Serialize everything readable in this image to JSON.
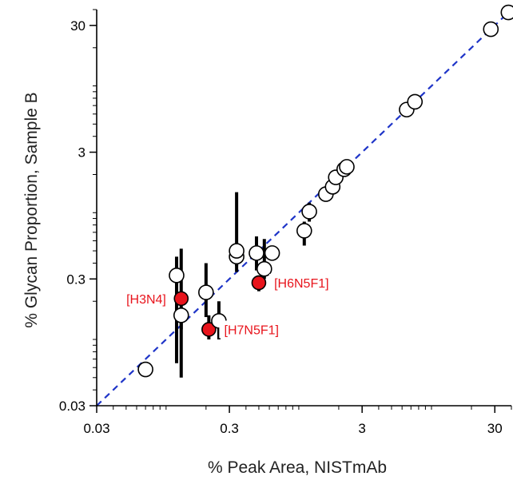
{
  "colors": {
    "axis": "#000000",
    "fit_line": "#1f35c8",
    "open_marker_fill": "#ffffff",
    "highlight_marker_fill": "#e8141c",
    "annotation_text": "#e8141c"
  },
  "chart_data": {
    "type": "scatter",
    "xlabel": "% Peak Area, NISTmAb",
    "ylabel": "% Glycan Proportion, Sample B",
    "x_scale": "log",
    "y_scale": "log",
    "xlim": [
      0.03,
      40
    ],
    "ylim": [
      0.03,
      40
    ],
    "x_ticks": [
      "0.03",
      "0.3",
      "3",
      "30"
    ],
    "y_ticks": [
      "0.03",
      "0.3",
      "3",
      "30"
    ],
    "grid": false,
    "legend": "none",
    "reference_line": {
      "style": "dashed",
      "x": [
        0.03,
        40
      ],
      "y": [
        0.03,
        40
      ]
    },
    "points": [
      {
        "x": 0.07,
        "y": 0.058,
        "err_low": 0.053,
        "err_high": 0.064,
        "highlight": false
      },
      {
        "x": 0.12,
        "y": 0.32,
        "err_low": 0.065,
        "err_high": 0.45,
        "highlight": false
      },
      {
        "x": 0.13,
        "y": 0.155,
        "err_low": 0.12,
        "err_high": 0.18,
        "highlight": false
      },
      {
        "x": 0.13,
        "y": 0.21,
        "err_low": 0.05,
        "err_high": 0.52,
        "highlight": true
      },
      {
        "x": 0.2,
        "y": 0.235,
        "err_low": 0.15,
        "err_high": 0.4,
        "highlight": false
      },
      {
        "x": 0.21,
        "y": 0.12,
        "err_low": 0.1,
        "err_high": 0.155,
        "highlight": true
      },
      {
        "x": 0.25,
        "y": 0.14,
        "err_low": 0.1,
        "err_high": 0.2,
        "highlight": false
      },
      {
        "x": 0.34,
        "y": 0.45,
        "err_low": 0.38,
        "err_high": 0.52,
        "highlight": false
      },
      {
        "x": 0.34,
        "y": 0.5,
        "err_low": 0.34,
        "err_high": 1.45,
        "highlight": false
      },
      {
        "x": 0.48,
        "y": 0.48,
        "err_low": 0.35,
        "err_high": 0.65,
        "highlight": false
      },
      {
        "x": 0.5,
        "y": 0.28,
        "err_low": 0.24,
        "err_high": 0.32,
        "highlight": true
      },
      {
        "x": 0.55,
        "y": 0.36,
        "err_low": 0.3,
        "err_high": 0.62,
        "highlight": false
      },
      {
        "x": 0.63,
        "y": 0.48,
        "err_low": 0.43,
        "err_high": 0.53,
        "highlight": false
      },
      {
        "x": 1.1,
        "y": 0.72,
        "err_low": 0.55,
        "err_high": 0.85,
        "highlight": false
      },
      {
        "x": 1.2,
        "y": 1.02,
        "err_low": 0.85,
        "err_high": 1.2,
        "highlight": false
      },
      {
        "x": 1.6,
        "y": 1.4,
        "err_low": 1.25,
        "err_high": 1.55,
        "highlight": false
      },
      {
        "x": 1.8,
        "y": 1.6,
        "err_low": 1.45,
        "err_high": 1.75,
        "highlight": false
      },
      {
        "x": 1.9,
        "y": 1.9,
        "err_low": 1.75,
        "err_high": 2.05,
        "highlight": false
      },
      {
        "x": 2.2,
        "y": 2.2,
        "err_low": 2.0,
        "err_high": 2.5,
        "highlight": false
      },
      {
        "x": 2.3,
        "y": 2.3,
        "err_low": 2.0,
        "err_high": 2.6,
        "highlight": false
      },
      {
        "x": 6.5,
        "y": 6.5,
        "err_low": 6.2,
        "err_high": 6.8,
        "highlight": false
      },
      {
        "x": 7.5,
        "y": 7.5,
        "err_low": 7.2,
        "err_high": 7.8,
        "highlight": false
      },
      {
        "x": 28,
        "y": 28,
        "err_low": 27,
        "err_high": 29,
        "highlight": false
      },
      {
        "x": 38,
        "y": 38,
        "err_low": 37,
        "err_high": 39,
        "highlight": false
      }
    ],
    "annotations": [
      {
        "text": "[H3N4]",
        "x": 0.13,
        "y": 0.21,
        "side": "left"
      },
      {
        "text": "[H6N5F1]",
        "x": 0.5,
        "y": 0.28,
        "side": "right"
      },
      {
        "text": "[H7N5F1]",
        "x": 0.21,
        "y": 0.12,
        "side": "right"
      }
    ]
  }
}
